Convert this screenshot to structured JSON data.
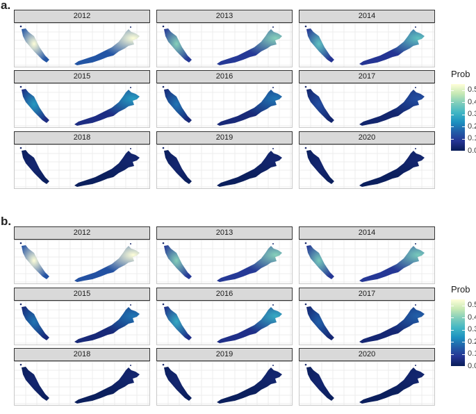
{
  "panels": [
    {
      "label": "a.",
      "facets": [
        {
          "year": "2012",
          "level": 0.4
        },
        {
          "year": "2013",
          "level": 0.25
        },
        {
          "year": "2014",
          "level": 0.22
        },
        {
          "year": "2015",
          "level": 0.16
        },
        {
          "year": "2016",
          "level": 0.12
        },
        {
          "year": "2017",
          "level": 0.08
        },
        {
          "year": "2018",
          "level": 0.02
        },
        {
          "year": "2019",
          "level": 0.02
        },
        {
          "year": "2020",
          "level": 0.02
        }
      ]
    },
    {
      "label": "b.",
      "facets": [
        {
          "year": "2012",
          "level": 0.38
        },
        {
          "year": "2013",
          "level": 0.25
        },
        {
          "year": "2014",
          "level": 0.24
        },
        {
          "year": "2015",
          "level": 0.12
        },
        {
          "year": "2016",
          "level": 0.18
        },
        {
          "year": "2017",
          "level": 0.1
        },
        {
          "year": "2018",
          "level": 0.02
        },
        {
          "year": "2019",
          "level": 0.02
        },
        {
          "year": "2020",
          "level": 0.02
        }
      ]
    }
  ],
  "legend": {
    "title": "Prob",
    "ticks": [
      "0.5",
      "0.4",
      "0.3",
      "0.2",
      "0.1",
      "0.0"
    ],
    "tick_values": [
      0.5,
      0.4,
      0.3,
      0.2,
      0.1,
      0.0
    ],
    "max": 0.55
  },
  "colors": {
    "scale": [
      "#081d58",
      "#253494",
      "#225ea8",
      "#1d91c0",
      "#41b6c4",
      "#7fcdbb",
      "#c7e9b4",
      "#ffffd9"
    ]
  },
  "chart_data": [
    {
      "type": "heatmap",
      "title": "",
      "facet_labels": [
        "2012",
        "2013",
        "2014",
        "2015",
        "2016",
        "2017",
        "2018",
        "2019",
        "2020"
      ],
      "legend_title": "Prob",
      "color_range": [
        0.0,
        0.55
      ],
      "grid": true
    },
    {
      "type": "heatmap",
      "title": "",
      "facet_labels": [
        "2012",
        "2013",
        "2014",
        "2015",
        "2016",
        "2017",
        "2018",
        "2019",
        "2020"
      ],
      "legend_title": "Prob",
      "color_range": [
        0.0,
        0.55
      ],
      "grid": true
    }
  ]
}
